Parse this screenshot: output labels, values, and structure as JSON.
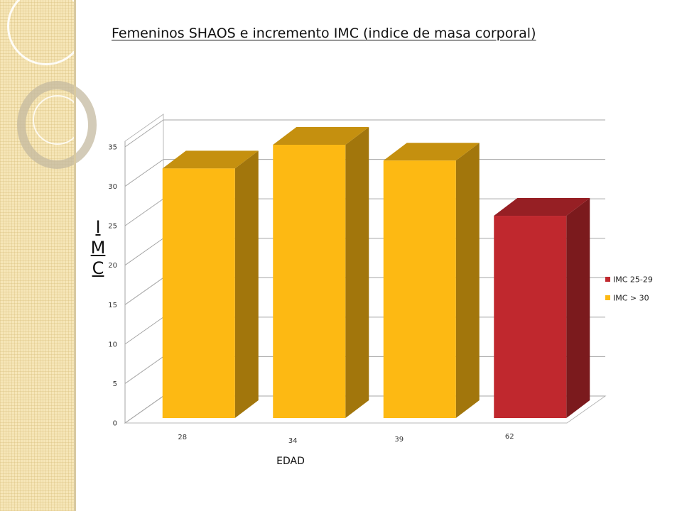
{
  "slide": {
    "title": "Femeninos SHAOS e incremento IMC (indice de masa corporal)"
  },
  "chart_data": {
    "type": "bar",
    "title": "Femeninos SHAOS e incremento IMC (indice de masa corporal)",
    "xlabel": "EDAD",
    "ylabel": "IMC",
    "ylabel_letters": [
      "I",
      "M",
      "C"
    ],
    "categories": [
      "28",
      "34",
      "39",
      "62"
    ],
    "series": [
      {
        "name": "IMC 25-29",
        "color": "#c0282e",
        "values": [
          null,
          null,
          null,
          26
        ]
      },
      {
        "name": "IMC > 30",
        "color": "#fdb913",
        "values": [
          32,
          35,
          33,
          null
        ]
      }
    ],
    "ylim": [
      0,
      35
    ],
    "yticks": [
      0,
      5,
      10,
      15,
      20,
      25,
      30,
      35
    ],
    "grid": true,
    "legend_position": "right"
  }
}
